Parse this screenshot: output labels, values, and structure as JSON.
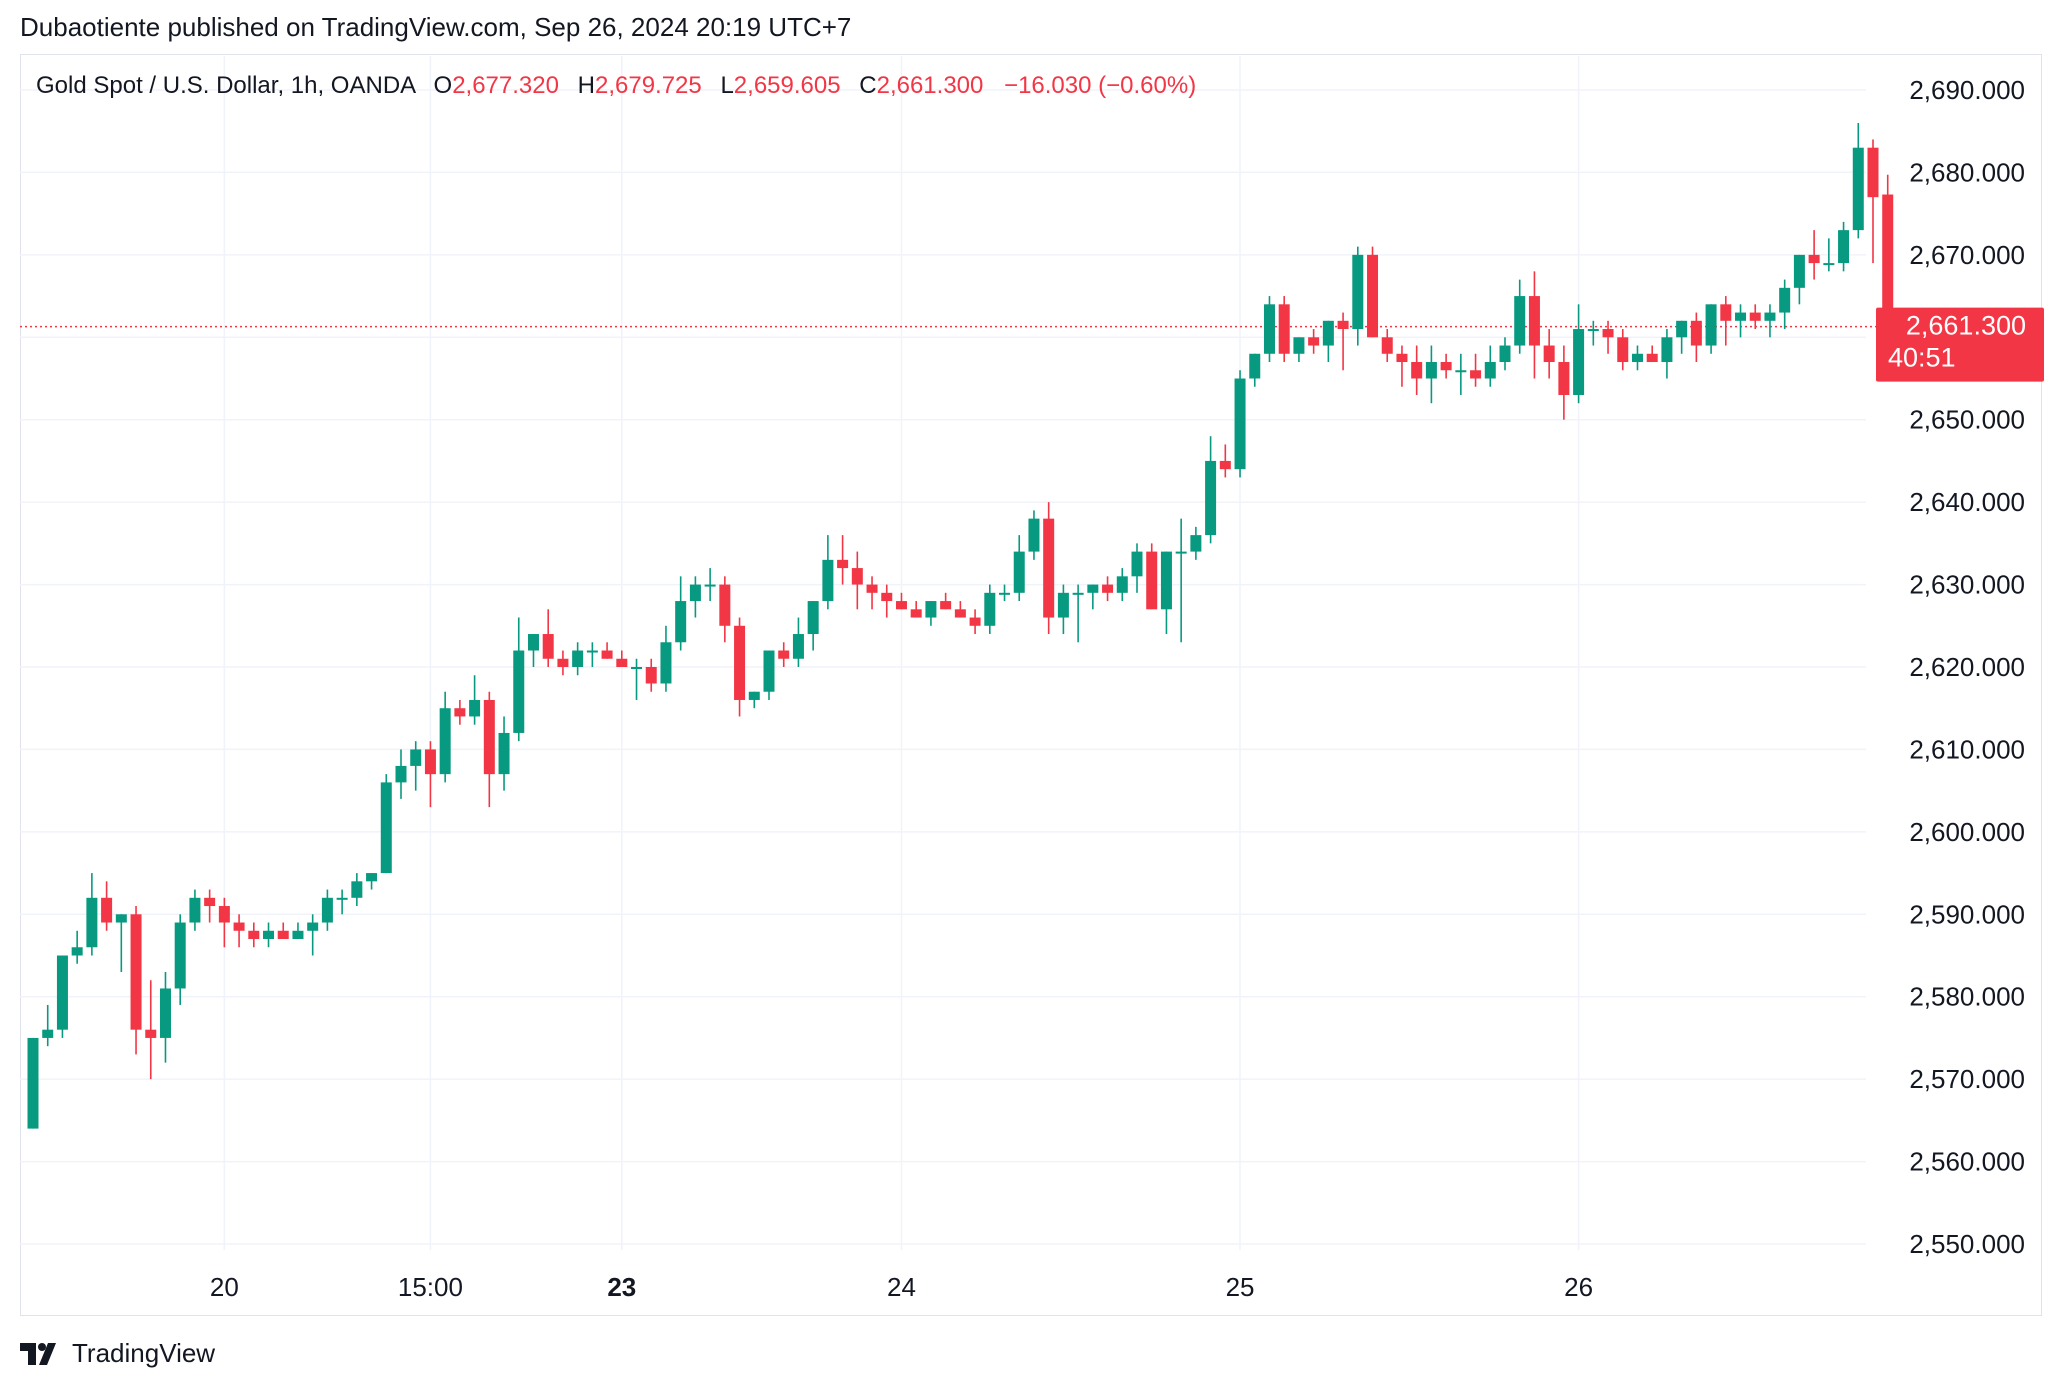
{
  "header": {
    "publisher_line": "Dubaotiente published on TradingView.com, Sep 26, 2024 20:19 UTC+7"
  },
  "legend": {
    "symbol": "Gold Spot / U.S. Dollar, 1h, OANDA",
    "open_label": "O",
    "open_value": "2,677.320",
    "high_label": "H",
    "high_value": "2,679.725",
    "low_label": "L",
    "low_value": "2,659.605",
    "close_label": "C",
    "close_value": "2,661.300",
    "change": "−16.030 (−0.60%)"
  },
  "price_tag": {
    "price": "2,661.300",
    "countdown": "40:51"
  },
  "footer": {
    "brand": "TradingView"
  },
  "colors": {
    "up": "#089981",
    "down": "#f23645",
    "grid": "#f0f3fa",
    "text": "#131722"
  },
  "chart_data": {
    "type": "candlestick",
    "timeframe": "1h",
    "ylim": [
      2550,
      2690
    ],
    "y_ticks": [
      "2,690.000",
      "2,680.000",
      "2,670.000",
      "2,660.000",
      "2,650.000",
      "2,640.000",
      "2,630.000",
      "2,620.000",
      "2,610.000",
      "2,600.000",
      "2,590.000",
      "2,580.000",
      "2,570.000",
      "2,560.000",
      "2,550.000"
    ],
    "y_tick_values": [
      2690,
      2680,
      2670,
      2660,
      2650,
      2640,
      2630,
      2620,
      2610,
      2600,
      2590,
      2580,
      2570,
      2560,
      2550
    ],
    "x_ticks": [
      {
        "label": "20",
        "index": 13,
        "bold": false
      },
      {
        "label": "15:00",
        "index": 27,
        "bold": false
      },
      {
        "label": "23",
        "index": 40,
        "bold": true
      },
      {
        "label": "24",
        "index": 59,
        "bold": false
      },
      {
        "label": "25",
        "index": 82,
        "bold": false
      },
      {
        "label": "26",
        "index": 105,
        "bold": false
      }
    ],
    "last_price": 2661.3,
    "ohlc": [
      [
        2564,
        2575,
        2564,
        2575
      ],
      [
        2575,
        2579,
        2574,
        2576
      ],
      [
        2576,
        2585,
        2575,
        2585
      ],
      [
        2585,
        2588,
        2584,
        2586
      ],
      [
        2586,
        2595,
        2585,
        2592
      ],
      [
        2592,
        2594,
        2588,
        2589
      ],
      [
        2589,
        2590,
        2583,
        2590
      ],
      [
        2590,
        2591,
        2573,
        2576
      ],
      [
        2576,
        2582,
        2570,
        2575
      ],
      [
        2575,
        2583,
        2572,
        2581
      ],
      [
        2581,
        2590,
        2579,
        2589
      ],
      [
        2589,
        2593,
        2588,
        2592
      ],
      [
        2592,
        2593,
        2589,
        2591
      ],
      [
        2591,
        2592,
        2586,
        2589
      ],
      [
        2589,
        2590,
        2586,
        2588
      ],
      [
        2588,
        2589,
        2586,
        2587
      ],
      [
        2587,
        2589,
        2586,
        2588
      ],
      [
        2588,
        2589,
        2587,
        2587
      ],
      [
        2587,
        2589,
        2587,
        2588
      ],
      [
        2588,
        2590,
        2585,
        2589
      ],
      [
        2589,
        2593,
        2588,
        2592
      ],
      [
        2592,
        2593,
        2590,
        2592
      ],
      [
        2592,
        2595,
        2591,
        2594
      ],
      [
        2594,
        2595,
        2593,
        2595
      ],
      [
        2595,
        2607,
        2595,
        2606
      ],
      [
        2606,
        2610,
        2604,
        2608
      ],
      [
        2608,
        2611,
        2605,
        2610
      ],
      [
        2610,
        2611,
        2603,
        2607
      ],
      [
        2607,
        2617,
        2606,
        2615
      ],
      [
        2615,
        2616,
        2613,
        2614
      ],
      [
        2614,
        2619,
        2613,
        2616
      ],
      [
        2616,
        2617,
        2603,
        2607
      ],
      [
        2607,
        2614,
        2605,
        2612
      ],
      [
        2612,
        2626,
        2611,
        2622
      ],
      [
        2622,
        2624,
        2620,
        2624
      ],
      [
        2624,
        2627,
        2620,
        2621
      ],
      [
        2621,
        2622,
        2619,
        2620
      ],
      [
        2620,
        2623,
        2619,
        2622
      ],
      [
        2622,
        2623,
        2620,
        2622
      ],
      [
        2622,
        2623,
        2621,
        2621
      ],
      [
        2621,
        2622,
        2620,
        2620
      ],
      [
        2620,
        2621,
        2616,
        2620
      ],
      [
        2620,
        2621,
        2617,
        2618
      ],
      [
        2618,
        2625,
        2617,
        2623
      ],
      [
        2623,
        2631,
        2622,
        2628
      ],
      [
        2628,
        2631,
        2626,
        2630
      ],
      [
        2630,
        2632,
        2628,
        2630
      ],
      [
        2630,
        2631,
        2623,
        2625
      ],
      [
        2625,
        2626,
        2614,
        2616
      ],
      [
        2616,
        2617,
        2615,
        2617
      ],
      [
        2617,
        2622,
        2616,
        2622
      ],
      [
        2622,
        2623,
        2620,
        2621
      ],
      [
        2621,
        2626,
        2620,
        2624
      ],
      [
        2624,
        2628,
        2622,
        2628
      ],
      [
        2628,
        2636,
        2627,
        2633
      ],
      [
        2633,
        2636,
        2630,
        2632
      ],
      [
        2632,
        2634,
        2627,
        2630
      ],
      [
        2630,
        2631,
        2627,
        2629
      ],
      [
        2629,
        2630,
        2626,
        2628
      ],
      [
        2628,
        2629,
        2627,
        2627
      ],
      [
        2627,
        2628,
        2626,
        2626
      ],
      [
        2626,
        2628,
        2625,
        2628
      ],
      [
        2628,
        2629,
        2627,
        2627
      ],
      [
        2627,
        2628,
        2626,
        2626
      ],
      [
        2626,
        2627,
        2624,
        2625
      ],
      [
        2625,
        2630,
        2624,
        2629
      ],
      [
        2629,
        2630,
        2628,
        2629
      ],
      [
        2629,
        2636,
        2628,
        2634
      ],
      [
        2634,
        2639,
        2633,
        2638
      ],
      [
        2638,
        2640,
        2624,
        2626
      ],
      [
        2626,
        2630,
        2624,
        2629
      ],
      [
        2629,
        2630,
        2623,
        2629
      ],
      [
        2629,
        2630,
        2627,
        2630
      ],
      [
        2630,
        2631,
        2628,
        2629
      ],
      [
        2629,
        2632,
        2628,
        2631
      ],
      [
        2631,
        2635,
        2629,
        2634
      ],
      [
        2634,
        2635,
        2627,
        2627
      ],
      [
        2627,
        2634,
        2624,
        2634
      ],
      [
        2634,
        2638,
        2623,
        2634
      ],
      [
        2634,
        2637,
        2633,
        2636
      ],
      [
        2636,
        2648,
        2635,
        2645
      ],
      [
        2645,
        2647,
        2643,
        2644
      ],
      [
        2644,
        2656,
        2643,
        2655
      ],
      [
        2655,
        2658,
        2654,
        2658
      ],
      [
        2658,
        2665,
        2657,
        2664
      ],
      [
        2664,
        2665,
        2657,
        2658
      ],
      [
        2658,
        2660,
        2657,
        2660
      ],
      [
        2660,
        2661,
        2658,
        2659
      ],
      [
        2659,
        2662,
        2657,
        2662
      ],
      [
        2662,
        2663,
        2656,
        2661
      ],
      [
        2661,
        2671,
        2659,
        2670
      ],
      [
        2670,
        2671,
        2660,
        2660
      ],
      [
        2660,
        2661,
        2657,
        2658
      ],
      [
        2658,
        2659,
        2654,
        2657
      ],
      [
        2657,
        2659,
        2653,
        2655
      ],
      [
        2655,
        2659,
        2652,
        2657
      ],
      [
        2657,
        2658,
        2655,
        2656
      ],
      [
        2656,
        2658,
        2653,
        2656
      ],
      [
        2656,
        2658,
        2654,
        2655
      ],
      [
        2655,
        2659,
        2654,
        2657
      ],
      [
        2657,
        2660,
        2656,
        2659
      ],
      [
        2659,
        2667,
        2658,
        2665
      ],
      [
        2665,
        2668,
        2655,
        2659
      ],
      [
        2659,
        2661,
        2655,
        2657
      ],
      [
        2657,
        2659,
        2650,
        2653
      ],
      [
        2653,
        2664,
        2652,
        2661
      ],
      [
        2661,
        2662,
        2659,
        2661
      ],
      [
        2661,
        2662,
        2658,
        2660
      ],
      [
        2660,
        2661,
        2656,
        2657
      ],
      [
        2657,
        2659,
        2656,
        2658
      ],
      [
        2658,
        2659,
        2657,
        2657
      ],
      [
        2657,
        2661,
        2655,
        2660
      ],
      [
        2660,
        2662,
        2658,
        2662
      ],
      [
        2662,
        2663,
        2657,
        2659
      ],
      [
        2659,
        2664,
        2658,
        2664
      ],
      [
        2664,
        2665,
        2659,
        2662
      ],
      [
        2662,
        2664,
        2660,
        2663
      ],
      [
        2663,
        2664,
        2661,
        2662
      ],
      [
        2662,
        2664,
        2660,
        2663
      ],
      [
        2663,
        2667,
        2661,
        2666
      ],
      [
        2666,
        2670,
        2664,
        2670
      ],
      [
        2670,
        2673,
        2667,
        2669
      ],
      [
        2669,
        2672,
        2668,
        2669
      ],
      [
        2669,
        2674,
        2668,
        2673
      ],
      [
        2673,
        2686,
        2672,
        2683
      ],
      [
        2683,
        2684,
        2669,
        2677
      ],
      [
        2677.32,
        2679.725,
        2659.605,
        2661.3
      ]
    ]
  }
}
